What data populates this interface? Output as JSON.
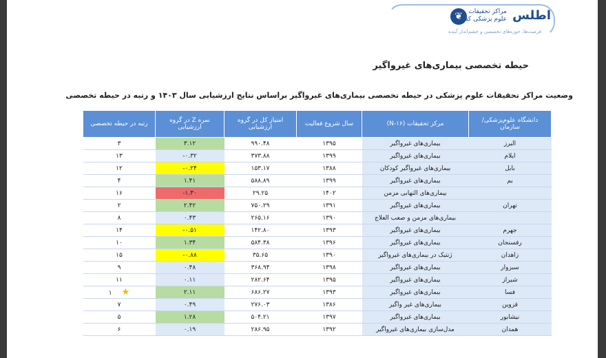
{
  "header": {
    "logo_title": "اطلس",
    "logo_subtitle_line1": "مراکز تحقیقات",
    "logo_subtitle_line2": "علوم پزشکی کشور",
    "logo_tagline": "فرصت‌ها، حوزه‌های تخصصی و چشم‌انداز آینده"
  },
  "page_title": "حیطه تخصصی بیماری‌های غیرواگیر",
  "table_caption": "وضعیت مراکز تحقیقات علوم پزشکی در حیطه تخصصی بیماری‌های غیرواگیر براساس نتایج ارزشیابی سال ۱۴۰۳ و رتبه در حیطه تخصصی",
  "columns": {
    "university": "دانشگاه علوم‌پزشکی/ سازمان",
    "center": "مرکز تحقیقات (N-۱۶)",
    "start_year": "سال شروع فعالیت",
    "total_score": "امتیاز کل در گروه ارزشیابی",
    "z_score": "نمره Z در گروه ارزشیابی",
    "rank": "رتبه در حیطه تخصصی"
  },
  "colors": {
    "green": "#b7dca2",
    "yellow": "#ffff00",
    "red": "#ee6b6b",
    "blue": "#dde9f7",
    "header": "#5b8fd6"
  },
  "rows": [
    {
      "university": "البرز",
      "center": "بیماری‌های غیرواگیر",
      "start_year": "۱۳۹۵",
      "total_score": "۹۹۰.۴۸",
      "z_score": "۳.۱۲",
      "z_color": "green",
      "rank": "۳"
    },
    {
      "university": "ایلام",
      "center": "بیماری‌های غیرواگیر",
      "start_year": "۱۳۹۹",
      "total_score": "۳۷۳.۸۸",
      "z_score": "۰.۳۲-",
      "z_color": "blue",
      "rank": "۱۳"
    },
    {
      "university": "بابل",
      "center": "بیماری‌های غیرواگیر کودکان",
      "start_year": "۱۳۸۸",
      "total_score": "۱۵۳.۱۷",
      "z_score": "۰.۲۴-",
      "z_color": "yellow",
      "rank": "۱۲"
    },
    {
      "university": "بم",
      "center": "بیماری‌های غیرواگیر",
      "start_year": "۱۳۹۹",
      "total_score": "۵۸۸.۸۹",
      "z_score": "۱.۴۱",
      "z_color": "green",
      "rank": "۴"
    },
    {
      "university": "",
      "center": "بیماری‌های التهابی مزمن",
      "start_year": "۱۴۰۲",
      "total_score": "۲۹.۲۵",
      "z_score": "۱.۳۰-",
      "z_color": "red",
      "rank": "۱۶"
    },
    {
      "university": "تهران",
      "center": "بیماری‌های غیرواگیر",
      "start_year": "۱۳۹۱",
      "total_score": "۷۵۰.۲۹",
      "z_score": "۲.۴۲",
      "z_color": "green",
      "rank": "۲"
    },
    {
      "university": "",
      "center": "بیماری‌های مزمن و صعب العلاج",
      "start_year": "۱۳۹۰",
      "total_score": "۲۶۵.۱۶",
      "z_score": "۰.۴۳",
      "z_color": "blue",
      "rank": "۸"
    },
    {
      "university": "جهرم",
      "center": "بیماری‌های غیرواگیر",
      "start_year": "۱۳۹۳",
      "total_score": "۱۴۲.۸۰",
      "z_score": "۰.۵۱-",
      "z_color": "yellow",
      "rank": "۱۴"
    },
    {
      "university": "رفسنجان",
      "center": "بیماری‌های غیرواگیر",
      "start_year": "۱۳۹۶",
      "total_score": "۵۸۴.۳۸",
      "z_score": "۱.۳۴",
      "z_color": "green",
      "rank": "۱۰"
    },
    {
      "university": "زاهدان",
      "center": "ژنتیک در بیماری‌های غیرواگیر",
      "start_year": "۱۳۹۰",
      "total_score": "۳۵.۶۵",
      "z_score": "۰.۸۸-",
      "z_color": "yellow",
      "rank": "۱۵"
    },
    {
      "university": "سبزوار",
      "center": "بیماری‌های غیرواگیر",
      "start_year": "۱۳۹۸",
      "total_score": "۳۶۸.۹۴",
      "z_score": "۰.۴۸",
      "z_color": "blue",
      "rank": "۹"
    },
    {
      "university": "شیراز",
      "center": "بیماری‌های غیرواگیر",
      "start_year": "۱۳۹۵",
      "total_score": "۲۸۲.۶۴",
      "z_score": "۰.۱۱",
      "z_color": "blue",
      "rank": "۱۱"
    },
    {
      "university": "فسا",
      "center": "بیماری‌های غیرواگیر",
      "start_year": "۱۳۹۳",
      "total_score": "۶۸۶.۲۷",
      "z_score": "۲.۱۱",
      "z_color": "green",
      "rank": "۱",
      "star": "★"
    },
    {
      "university": "قزوین",
      "center": "بیماری‌های غیر واگیر",
      "start_year": "۱۳۸۶",
      "total_score": "۲۷۶.۰۳",
      "z_score": "۰.۴۹",
      "z_color": "blue",
      "rank": "۷"
    },
    {
      "university": "نیشابور",
      "center": "بیماری‌های غیرواگیر",
      "start_year": "۱۳۹۷",
      "total_score": "۵۰۴.۲۱",
      "z_score": "۱.۲۸",
      "z_color": "green",
      "rank": "۵"
    },
    {
      "university": "همدان",
      "center": "مدل‌سازی بیماری‌های غیرواگیر",
      "start_year": "۱۳۹۲",
      "total_score": "۲۸۶.۹۵",
      "z_score": "۰.۱۹",
      "z_color": "blue",
      "rank": "۶"
    }
  ]
}
